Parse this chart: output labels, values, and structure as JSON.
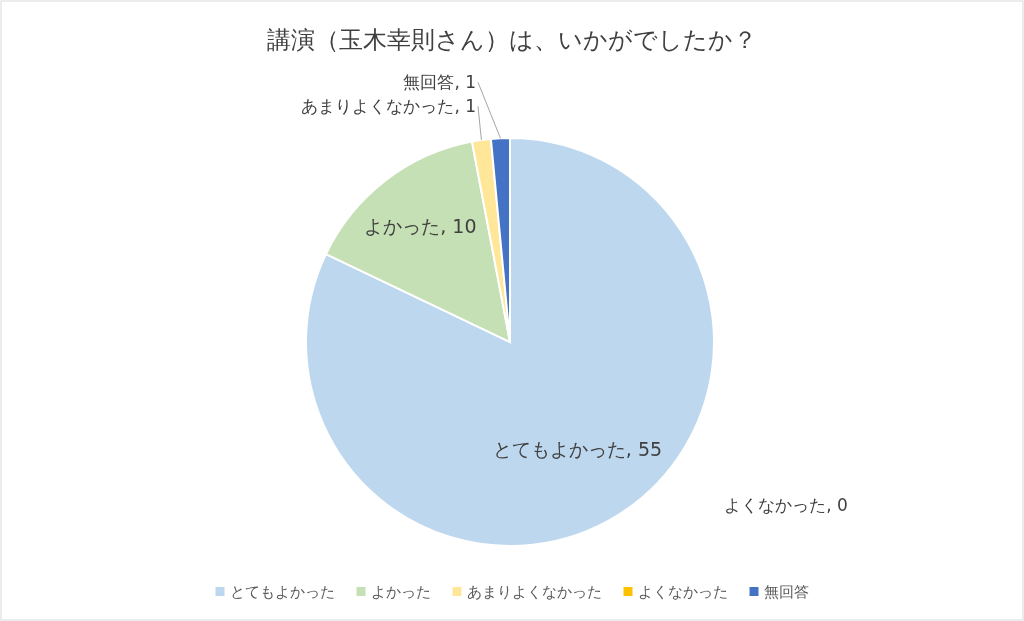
{
  "chart_data": {
    "type": "pie",
    "title": "講演（玉木幸則さん）は、いかがでしたか？",
    "categories": [
      "とてもよかった",
      "よかった",
      "あまりよくなかった",
      "よくなかった",
      "無回答"
    ],
    "values": [
      55,
      10,
      1,
      0,
      1
    ],
    "colors": [
      "#bdd7ee",
      "#c5e0b4",
      "#ffe699",
      "#ffc000",
      "#4472c4"
    ],
    "value_labels": [
      ", 55",
      ", 10",
      ", 1",
      ", 0",
      ", 1"
    ],
    "legend": "bottom"
  }
}
